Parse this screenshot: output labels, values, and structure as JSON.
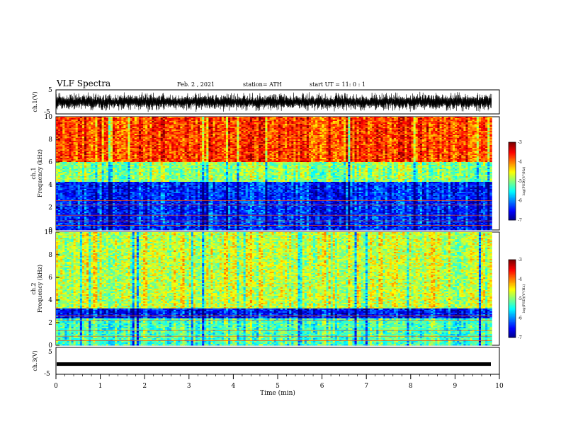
{
  "header": {
    "title": "VLF Spectra",
    "date": "Feb. 2 , 2021",
    "station": "station= ATH",
    "start": "start UT = 11: 0 : 1"
  },
  "colors": {
    "spectrum_low": "#00008f",
    "spectrum_mid": "#00ff80",
    "spectrum_high": "#ff0000",
    "trace": "#000000"
  },
  "chart_data": [
    {
      "type": "line",
      "panel": "ch1-waveform",
      "ylabel": "ch.1(V)",
      "ylim": [
        -5,
        5
      ],
      "yticks": [
        "5",
        "-5"
      ],
      "xlim": [
        0,
        10
      ],
      "description_values": "dense oscillating voltage trace, mostly between -4 and 4 V"
    },
    {
      "type": "heatmap",
      "panel": "ch1-spectrogram",
      "ylabel": "ch.1 Frequency (kHz)",
      "ylim": [
        0,
        10
      ],
      "yticks": [
        "0",
        "2",
        "4",
        "6",
        "8",
        "10"
      ],
      "xlim": [
        0,
        9.83
      ],
      "bands": [
        {
          "f_min": 0,
          "f_max": 4.3,
          "level": -6.3
        },
        {
          "f_min": 4.3,
          "f_max": 6.0,
          "level": -4.9
        },
        {
          "f_min": 6.0,
          "f_max": 10,
          "level": -3.7
        }
      ],
      "colorbar": {
        "label": "log(PSD)(V²/Hz)",
        "ticks": [
          "-3",
          "-4",
          "-5",
          "-6",
          "-7"
        ],
        "range": [
          -7,
          -3
        ]
      }
    },
    {
      "type": "heatmap",
      "panel": "ch2-spectrogram",
      "ylabel": "ch.2 Frequency (kHz)",
      "ylim": [
        0,
        10
      ],
      "yticks": [
        "0",
        "2",
        "4",
        "6",
        "8",
        "10"
      ],
      "xlim": [
        0,
        9.83
      ],
      "bands": [
        {
          "f_min": 0,
          "f_max": 2.4,
          "level": -5.2
        },
        {
          "f_min": 2.4,
          "f_max": 3.3,
          "level": -6.4
        },
        {
          "f_min": 3.3,
          "f_max": 10,
          "level": -4.7
        }
      ],
      "colorbar": {
        "label": "log(PSD)(V²/Hz)",
        "ticks": [
          "-3",
          "-4",
          "-5",
          "-6",
          "-7"
        ],
        "range": [
          -7,
          -3
        ]
      }
    },
    {
      "type": "line",
      "panel": "ch3-waveform",
      "ylabel": "ch.3(V)",
      "ylim": [
        -5,
        5
      ],
      "yticks": [
        "5",
        "-5"
      ],
      "xlim": [
        0,
        10
      ],
      "constant_value": -1.2
    }
  ],
  "xaxis": {
    "label": "Time (min)",
    "range": [
      0,
      10
    ],
    "ticks": [
      "0",
      "1",
      "2",
      "3",
      "4",
      "5",
      "6",
      "7",
      "8",
      "9",
      "10"
    ]
  }
}
